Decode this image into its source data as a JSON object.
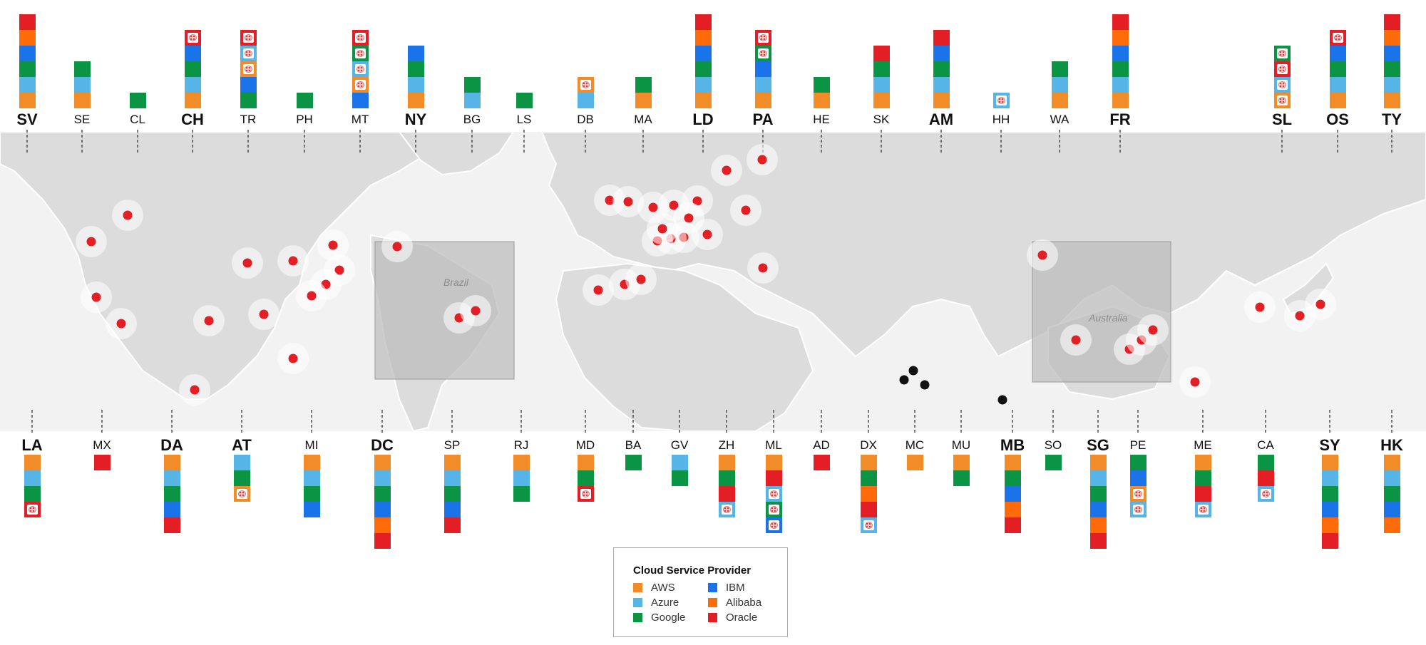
{
  "providers": {
    "AWS": "#f28c28",
    "Azure": "#56b4e6",
    "Google": "#0b9444",
    "IBM": "#1a73e8",
    "Alibaba": "#ff6a0a",
    "Oracle": "#e31e24"
  },
  "legend": {
    "title": "Cloud Service Provider",
    "items": [
      "AWS",
      "Azure",
      "Google",
      "IBM",
      "Alibaba",
      "Oracle"
    ]
  },
  "insets": {
    "brazil": "Brazil",
    "australia": "Australia"
  },
  "top_regions": [
    {
      "code": "SV",
      "bold": true,
      "blocks": [
        "AWS",
        "Azure",
        "Google",
        "IBM",
        "Alibaba",
        "Oracle"
      ]
    },
    {
      "code": "SE",
      "bold": false,
      "blocks": [
        "AWS",
        "Azure",
        "Google"
      ]
    },
    {
      "code": "CL",
      "bold": false,
      "blocks": [
        "Google"
      ]
    },
    {
      "code": "CH",
      "bold": true,
      "blocks": [
        "AWS",
        "Azure",
        "Google",
        "IBM",
        "Oracle:planned"
      ]
    },
    {
      "code": "TR",
      "bold": false,
      "blocks": [
        "Google",
        "IBM",
        "AWS:planned",
        "Azure:planned",
        "Oracle:planned"
      ]
    },
    {
      "code": "PH",
      "bold": false,
      "blocks": [
        "Google"
      ]
    },
    {
      "code": "MT",
      "bold": false,
      "blocks": [
        "IBM",
        "AWS:planned",
        "Azure:planned",
        "Google:planned",
        "Oracle:planned"
      ]
    },
    {
      "code": "NY",
      "bold": true,
      "blocks": [
        "AWS",
        "Azure",
        "Google",
        "IBM"
      ]
    },
    {
      "code": "BG",
      "bold": false,
      "blocks": [
        "Azure",
        "Google"
      ]
    },
    {
      "code": "LS",
      "bold": false,
      "blocks": [
        "Google"
      ]
    },
    {
      "code": "DB",
      "bold": false,
      "blocks": [
        "Azure",
        "AWS:planned"
      ]
    },
    {
      "code": "MA",
      "bold": false,
      "blocks": [
        "AWS",
        "Google"
      ]
    },
    {
      "code": "LD",
      "bold": true,
      "blocks": [
        "AWS",
        "Azure",
        "Google",
        "IBM",
        "Alibaba",
        "Oracle"
      ]
    },
    {
      "code": "PA",
      "bold": true,
      "blocks": [
        "AWS",
        "Azure",
        "IBM",
        "Google:planned",
        "Oracle:planned"
      ]
    },
    {
      "code": "HE",
      "bold": false,
      "blocks": [
        "AWS",
        "Google"
      ]
    },
    {
      "code": "SK",
      "bold": false,
      "blocks": [
        "AWS",
        "Azure",
        "Google",
        "Oracle"
      ]
    },
    {
      "code": "AM",
      "bold": true,
      "blocks": [
        "AWS",
        "Azure",
        "Google",
        "IBM",
        "Oracle"
      ]
    },
    {
      "code": "HH",
      "bold": false,
      "blocks": [
        "Azure:planned"
      ]
    },
    {
      "code": "WA",
      "bold": false,
      "blocks": [
        "AWS",
        "Azure",
        "Google"
      ]
    },
    {
      "code": "FR",
      "bold": true,
      "blocks": [
        "AWS",
        "Azure",
        "Google",
        "IBM",
        "Alibaba",
        "Oracle"
      ]
    },
    {
      "code": "SL",
      "bold": true,
      "blocks": [
        "AWS:planned",
        "Azure:planned",
        "Oracle:planned",
        "Google:planned"
      ]
    },
    {
      "code": "OS",
      "bold": true,
      "blocks": [
        "AWS",
        "Azure",
        "Google",
        "IBM",
        "Oracle:planned"
      ]
    },
    {
      "code": "TY",
      "bold": true,
      "blocks": [
        "AWS",
        "Azure",
        "Google",
        "IBM",
        "Alibaba",
        "Oracle"
      ]
    }
  ],
  "bottom_regions": [
    {
      "code": "LA",
      "bold": true,
      "blocks": [
        "AWS",
        "Azure",
        "Google",
        "Oracle:planned"
      ]
    },
    {
      "code": "MX",
      "bold": false,
      "blocks": [
        "Oracle"
      ]
    },
    {
      "code": "DA",
      "bold": true,
      "blocks": [
        "AWS",
        "Azure",
        "Google",
        "IBM",
        "Oracle"
      ]
    },
    {
      "code": "AT",
      "bold": true,
      "blocks": [
        "Azure",
        "Google",
        "AWS:planned"
      ]
    },
    {
      "code": "MI",
      "bold": false,
      "blocks": [
        "AWS",
        "Azure",
        "Google",
        "IBM"
      ]
    },
    {
      "code": "DC",
      "bold": true,
      "blocks": [
        "AWS",
        "Azure",
        "Google",
        "IBM",
        "Alibaba",
        "Oracle"
      ]
    },
    {
      "code": "SP",
      "bold": false,
      "blocks": [
        "AWS",
        "Azure",
        "Google",
        "IBM",
        "Oracle"
      ]
    },
    {
      "code": "RJ",
      "bold": false,
      "blocks": [
        "AWS",
        "Azure",
        "Google"
      ]
    },
    {
      "code": "MD",
      "bold": false,
      "blocks": [
        "AWS",
        "Google",
        "Oracle:planned"
      ]
    },
    {
      "code": "BA",
      "bold": false,
      "blocks": [
        "Google"
      ]
    },
    {
      "code": "GV",
      "bold": false,
      "blocks": [
        "Azure",
        "Google"
      ]
    },
    {
      "code": "ZH",
      "bold": false,
      "blocks": [
        "AWS",
        "Google",
        "Oracle",
        "Azure:planned"
      ]
    },
    {
      "code": "ML",
      "bold": false,
      "blocks": [
        "AWS",
        "Oracle",
        "Azure:planned",
        "Google:planned",
        "IBM:planned"
      ]
    },
    {
      "code": "AD",
      "bold": false,
      "blocks": [
        "Oracle"
      ]
    },
    {
      "code": "DX",
      "bold": false,
      "blocks": [
        "AWS",
        "Google",
        "Alibaba",
        "Oracle",
        "Azure:planned"
      ]
    },
    {
      "code": "MC",
      "bold": false,
      "blocks": [
        "AWS"
      ]
    },
    {
      "code": "MU",
      "bold": false,
      "blocks": [
        "AWS",
        "Google"
      ]
    },
    {
      "code": "MB",
      "bold": true,
      "blocks": [
        "AWS",
        "Google",
        "IBM",
        "Alibaba",
        "Oracle"
      ]
    },
    {
      "code": "SO",
      "bold": false,
      "blocks": [
        "Google"
      ]
    },
    {
      "code": "SG",
      "bold": true,
      "blocks": [
        "AWS",
        "Azure",
        "Google",
        "IBM",
        "Alibaba",
        "Oracle"
      ]
    },
    {
      "code": "PE",
      "bold": false,
      "blocks": [
        "Google",
        "IBM",
        "AWS:planned",
        "Azure:planned"
      ]
    },
    {
      "code": "ME",
      "bold": false,
      "blocks": [
        "AWS",
        "Google",
        "Oracle",
        "Azure:planned"
      ]
    },
    {
      "code": "CA",
      "bold": false,
      "blocks": [
        "Google",
        "Oracle",
        "Azure:planned"
      ]
    },
    {
      "code": "SY",
      "bold": true,
      "blocks": [
        "AWS",
        "Azure",
        "Google",
        "IBM",
        "Alibaba",
        "Oracle"
      ]
    },
    {
      "code": "HK",
      "bold": true,
      "blocks": [
        "AWS",
        "Azure",
        "Google",
        "IBM",
        "Alibaba"
      ]
    }
  ]
}
